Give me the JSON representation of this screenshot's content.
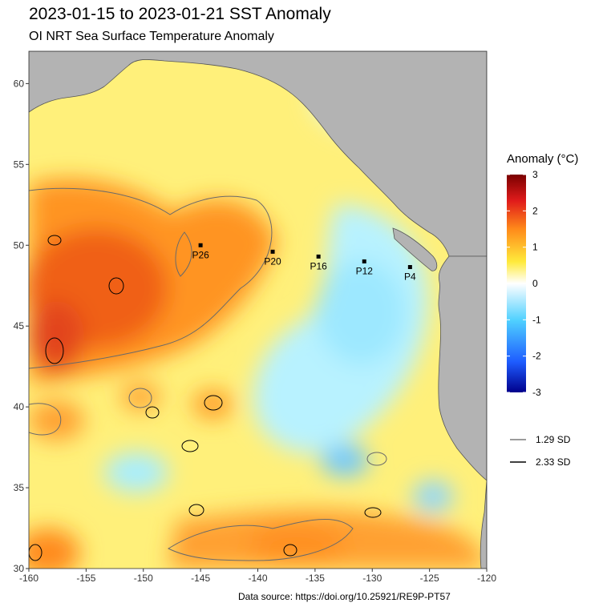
{
  "title": "2023-01-15 to 2023-01-21 SST Anomaly",
  "subtitle": "OI NRT Sea Surface Temperature Anomaly",
  "source": "Data source: https://doi.org/10.25921/RE9P-PT57",
  "map": {
    "lon_range": [
      -160,
      -120
    ],
    "lat_range": [
      30,
      62
    ],
    "x_ticks": [
      "-160",
      "-155",
      "-150",
      "-145",
      "-140",
      "-135",
      "-130",
      "-125",
      "-120"
    ],
    "y_ticks": [
      "30",
      "35",
      "40",
      "45",
      "50",
      "55",
      "60"
    ],
    "land_color": "#b3b3b3",
    "stations": [
      {
        "name": "P26",
        "lon": -145.0,
        "lat": 50.0
      },
      {
        "name": "P20",
        "lon": -138.7,
        "lat": 49.6
      },
      {
        "name": "P16",
        "lon": -134.7,
        "lat": 49.3
      },
      {
        "name": "P12",
        "lon": -130.7,
        "lat": 49.0
      },
      {
        "name": "P4",
        "lon": -126.7,
        "lat": 48.65
      }
    ]
  },
  "legend": {
    "title": "Anomaly (°C)",
    "ticks": [
      "3",
      "2",
      "1",
      "0",
      "-1",
      "-2",
      "-3"
    ],
    "colors": [
      "#00008b",
      "#1e5cff",
      "#4fd0ff",
      "#ffffff",
      "#ffea3b",
      "#ff8a1a",
      "#e01b1b",
      "#7a0000"
    ],
    "lines": [
      {
        "label": "1.29 SD",
        "color": "#7a7a7a"
      },
      {
        "label": "2.33 SD",
        "color": "#000000"
      }
    ]
  }
}
